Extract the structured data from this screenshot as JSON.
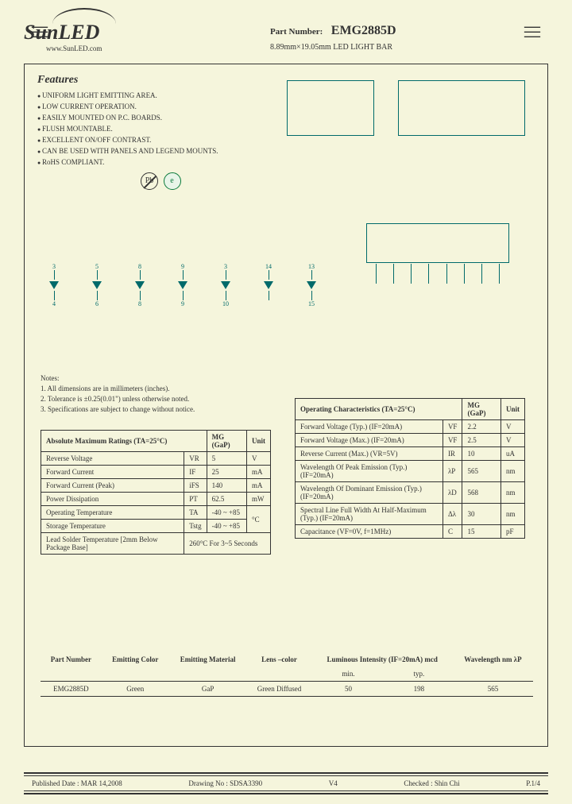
{
  "brand": "SunLED",
  "url": "www.SunLED.com",
  "part_label": "Part Number:",
  "part_number": "EMG2885D",
  "subtitle": "8.89mm×19.05mm LED LIGHT BAR",
  "features_h": "Features",
  "features": [
    "UNIFORM LIGHT EMITTING AREA.",
    "LOW CURRENT OPERATION.",
    "EASILY MOUNTED ON P.C. BOARDS.",
    "FLUSH MOUNTABLE.",
    "EXCELLENT ON/OFF CONTRAST.",
    "CAN BE USED WITH PANELS AND LEGEND MOUNTS.",
    "RoHS COMPLIANT."
  ],
  "pb_icon": "Pb",
  "led_pins_top": [
    "3",
    "5",
    "8",
    "9",
    "3",
    "14",
    "13"
  ],
  "led_pins_bot": [
    "4",
    "6",
    "8",
    "9",
    "10",
    "",
    "15"
  ],
  "notes_h": "Notes:",
  "notes": [
    "1. All dimensions are in millimeters (inches).",
    "2. Tolerance is ±0.25(0.01\") unless otherwise noted.",
    "3. Specifications are subject to change without notice."
  ],
  "abs_header": "Absolute Maximum Ratings (TA=25°C)",
  "abs_cols": [
    "",
    "MG (GaP)",
    "Unit"
  ],
  "abs_rows": [
    [
      "Reverse Voltage",
      "VR",
      "5",
      "V"
    ],
    [
      "Forward Current",
      "IF",
      "25",
      "mA"
    ],
    [
      "Forward Current (Peak)",
      "iFS",
      "140",
      "mA"
    ],
    [
      "Power Dissipation",
      "PT",
      "62.5",
      "mW"
    ],
    [
      "Operating Temperature",
      "TA",
      "-40 ~ +85",
      "°C"
    ],
    [
      "Storage Temperature",
      "Tstg",
      "-40 ~ +85",
      "°C"
    ],
    [
      "Lead Solder Temperature [2mm Below Package Base]",
      "260°C  For 3~5 Seconds",
      "",
      ""
    ]
  ],
  "op_header": "Operating Characteristics (TA=25°C)",
  "op_cols": [
    "",
    "MG (GaP)",
    "Unit"
  ],
  "op_rows": [
    [
      "Forward Voltage (Typ.) (IF=20mA)",
      "VF",
      "2.2",
      "V"
    ],
    [
      "Forward Voltage (Max.) (IF=20mA)",
      "VF",
      "2.5",
      "V"
    ],
    [
      "Reverse Current (Max.) (VR=5V)",
      "IR",
      "10",
      "uA"
    ],
    [
      "Wavelength Of Peak Emission (Typ.) (IF=20mA)",
      "λP",
      "565",
      "nm"
    ],
    [
      "Wavelength Of Dominant Emission (Typ.) (IF=20mA)",
      "λD",
      "568",
      "nm"
    ],
    [
      "Spectral Line Full Width At Half-Maximum (Typ.) (IF=20mA)",
      "Δλ",
      "30",
      "nm"
    ],
    [
      "Capacitance (VF=0V, f=1MHz)",
      "C",
      "15",
      "pF"
    ]
  ],
  "part_cols": [
    "Part Number",
    "Emitting Color",
    "Emitting Material",
    "Lens –color",
    "Luminous Intensity (IF=20mA) mcd",
    "",
    "Wavelength nm λP"
  ],
  "part_sub": [
    "",
    "",
    "",
    "",
    "min.",
    "typ.",
    ""
  ],
  "part_row": [
    "EMG2885D",
    "Green",
    "GaP",
    "Green Diffused",
    "50",
    "198",
    "565"
  ],
  "footer": {
    "pub": "Published Date : MAR  14,2008",
    "draw": "Drawing No : SDSA3390",
    "ver": "V4",
    "chk": "Checked : Shin  Chi",
    "pg": "P.1/4"
  },
  "colors": {
    "bg": "#f5f5dc",
    "line": "#333333",
    "diag": "#006a6a",
    "green": "#0a7a3a"
  }
}
